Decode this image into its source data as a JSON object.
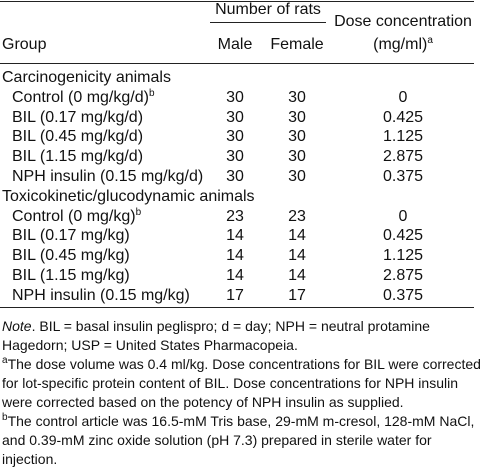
{
  "table": {
    "header": {
      "group": "Group",
      "number_of_rats": "Number of rats",
      "male": "Male",
      "female": "Female",
      "dose": "Dose concentration",
      "dose_unit": "(mg/ml)",
      "dose_unit_sup": "a"
    },
    "sections": [
      {
        "title": "Carcinogenicity animals",
        "rows": [
          {
            "group": "Control (0 mg/kg/d)",
            "group_sup": "b",
            "male": "30",
            "female": "30",
            "dose": "0"
          },
          {
            "group": "BIL (0.17 mg/kg/d)",
            "male": "30",
            "female": "30",
            "dose": "0.425"
          },
          {
            "group": "BIL (0.45 mg/kg/d)",
            "male": "30",
            "female": "30",
            "dose": "1.125"
          },
          {
            "group": "BIL (1.15 mg/kg/d)",
            "male": "30",
            "female": "30",
            "dose": "2.875"
          },
          {
            "group": "NPH insulin (0.15 mg/kg/d)",
            "male": "30",
            "female": "30",
            "dose": "0.375"
          }
        ]
      },
      {
        "title": "Toxicokinetic/glucodynamic animals",
        "rows": [
          {
            "group": "Control (0 mg/kg)",
            "group_sup": "b",
            "male": "23",
            "female": "23",
            "dose": "0"
          },
          {
            "group": "BIL (0.17 mg/kg)",
            "male": "14",
            "female": "14",
            "dose": "0.425"
          },
          {
            "group": "BIL (0.45 mg/kg)",
            "male": "14",
            "female": "14",
            "dose": "1.125"
          },
          {
            "group": "BIL (1.15 mg/kg)",
            "male": "14",
            "female": "14",
            "dose": "2.875"
          },
          {
            "group": "NPH insulin (0.15 mg/kg)",
            "male": "17",
            "female": "17",
            "dose": "0.375"
          }
        ]
      }
    ]
  },
  "notes": [
    {
      "lead": "Note",
      "lines": [
        ". BIL = basal insulin peglispro; d = day; NPH = neutral protamine",
        "Hagedorn; USP = United States Pharmacopeia."
      ]
    },
    {
      "sup": "a",
      "lines": [
        "The dose volume was 0.4 ml/kg. Dose concentrations for BIL were corrected",
        "for lot-specific protein content of BIL. Dose concentrations for NPH insulin",
        "were corrected based on the potency of NPH insulin as supplied."
      ]
    },
    {
      "sup": "b",
      "lines": [
        "The control article was 16.5-mM Tris base, 29-mM m-cresol, 128-mM NaCl,",
        "and 0.39-mM zinc oxide solution (pH 7.3) prepared in sterile water for",
        "injection."
      ]
    }
  ]
}
